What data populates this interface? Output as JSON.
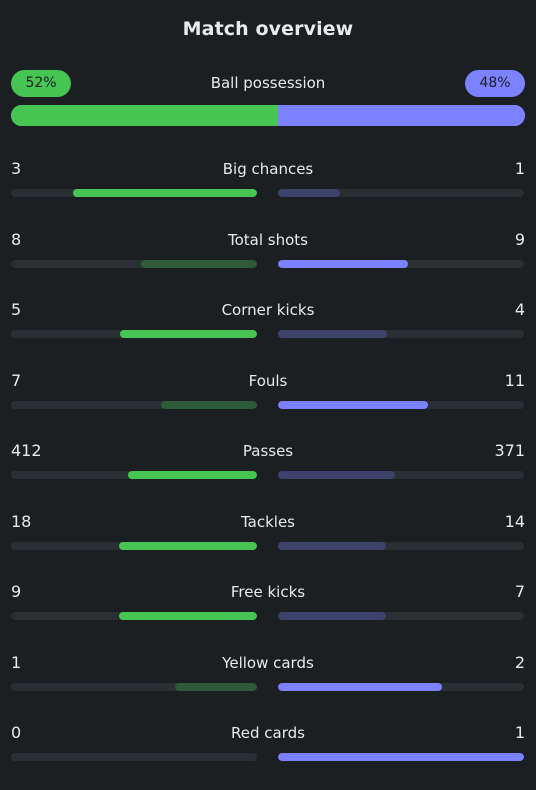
{
  "header": {
    "title": "Match overview"
  },
  "possession": {
    "label": "Ball possession",
    "home_label": "52%",
    "away_label": "48%",
    "home_fraction": 0.52,
    "away_fraction": 0.48
  },
  "colors": {
    "home_strong": "#47c552",
    "home_weak": "#2f5a3a",
    "away_strong": "#7c82ff",
    "away_weak": "#3c426a",
    "track": "#2a2f33",
    "background": "#1b1f22"
  },
  "stats": [
    {
      "label": "Big chances",
      "home": 3,
      "away": 1
    },
    {
      "label": "Total shots",
      "home": 8,
      "away": 9
    },
    {
      "label": "Corner kicks",
      "home": 5,
      "away": 4
    },
    {
      "label": "Fouls",
      "home": 7,
      "away": 11
    },
    {
      "label": "Passes",
      "home": 412,
      "away": 371
    },
    {
      "label": "Tackles",
      "home": 18,
      "away": 14
    },
    {
      "label": "Free kicks",
      "home": 9,
      "away": 7
    },
    {
      "label": "Yellow cards",
      "home": 1,
      "away": 2
    },
    {
      "label": "Red cards",
      "home": 0,
      "away": 1
    }
  ]
}
